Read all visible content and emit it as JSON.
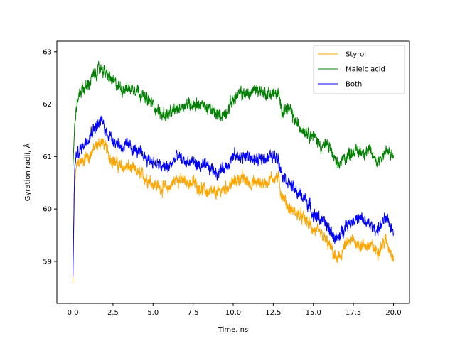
{
  "chart_data": {
    "type": "line",
    "xlabel": "Time, ns",
    "ylabel": "Gyration radii, Å",
    "xlim": [
      -1.0,
      21.0
    ],
    "ylim": [
      58.2,
      63.2
    ],
    "xticks": [
      0.0,
      2.5,
      5.0,
      7.5,
      10.0,
      12.5,
      15.0,
      17.5,
      20.0
    ],
    "xtick_labels": [
      "0.0",
      "2.5",
      "5.0",
      "7.5",
      "10.0",
      "12.5",
      "15.0",
      "17.5",
      "20.0"
    ],
    "yticks": [
      59,
      60,
      61,
      62,
      63
    ],
    "ytick_labels": [
      "59",
      "60",
      "61",
      "62",
      "63"
    ],
    "grid": false,
    "legend_position": "top-right",
    "series": [
      {
        "name": "Styrol",
        "color": "#ffa500",
        "x": [
          0.0,
          0.1,
          0.2,
          0.4,
          0.6,
          0.8,
          1.0,
          1.2,
          1.5,
          1.8,
          2.0,
          2.3,
          2.6,
          3.0,
          3.5,
          4.0,
          4.5,
          5.0,
          5.5,
          6.0,
          6.5,
          7.0,
          7.5,
          8.0,
          8.5,
          9.0,
          9.5,
          10.0,
          10.5,
          11.0,
          11.5,
          12.0,
          12.5,
          12.8,
          13.0,
          13.5,
          14.0,
          14.5,
          15.0,
          15.5,
          16.0,
          16.5,
          17.0,
          17.5,
          18.0,
          18.5,
          19.0,
          19.5,
          20.0
        ],
        "y": [
          58.6,
          60.4,
          60.8,
          60.9,
          60.9,
          61.0,
          61.0,
          61.1,
          61.2,
          61.3,
          61.2,
          61.0,
          60.9,
          60.8,
          60.8,
          60.7,
          60.6,
          60.5,
          60.4,
          60.4,
          60.6,
          60.5,
          60.5,
          60.4,
          60.3,
          60.3,
          60.4,
          60.5,
          60.6,
          60.5,
          60.5,
          60.5,
          60.6,
          60.6,
          60.3,
          60.0,
          59.9,
          59.8,
          59.6,
          59.5,
          59.3,
          59.0,
          59.3,
          59.4,
          59.3,
          59.3,
          59.2,
          59.4,
          59.1
        ]
      },
      {
        "name": "Maleic acid",
        "color": "#008000",
        "x": [
          0.0,
          0.1,
          0.2,
          0.4,
          0.6,
          0.8,
          1.0,
          1.2,
          1.5,
          1.8,
          2.0,
          2.3,
          2.6,
          3.0,
          3.5,
          4.0,
          4.5,
          5.0,
          5.5,
          6.0,
          6.5,
          7.0,
          7.5,
          8.0,
          8.5,
          9.0,
          9.5,
          10.0,
          10.5,
          11.0,
          11.5,
          12.0,
          12.5,
          12.8,
          13.0,
          13.5,
          14.0,
          14.5,
          15.0,
          15.5,
          16.0,
          16.5,
          17.0,
          17.5,
          18.0,
          18.5,
          19.0,
          19.5,
          20.0
        ],
        "y": [
          60.8,
          61.5,
          61.9,
          62.2,
          62.3,
          62.3,
          62.4,
          62.5,
          62.6,
          62.7,
          62.6,
          62.5,
          62.4,
          62.3,
          62.3,
          62.3,
          62.1,
          62.0,
          61.8,
          61.8,
          61.9,
          62.0,
          62.0,
          62.0,
          61.9,
          61.8,
          61.8,
          62.1,
          62.2,
          62.2,
          62.3,
          62.2,
          62.2,
          62.2,
          61.9,
          61.9,
          61.6,
          61.5,
          61.4,
          61.2,
          61.2,
          60.8,
          61.0,
          61.1,
          61.1,
          61.1,
          60.9,
          61.1,
          61.0
        ]
      },
      {
        "name": "Both",
        "color": "#0000ff",
        "x": [
          0.0,
          0.1,
          0.2,
          0.4,
          0.6,
          0.8,
          1.0,
          1.2,
          1.5,
          1.8,
          2.0,
          2.3,
          2.6,
          3.0,
          3.5,
          4.0,
          4.5,
          5.0,
          5.5,
          6.0,
          6.5,
          7.0,
          7.5,
          8.0,
          8.5,
          9.0,
          9.5,
          10.0,
          10.5,
          11.0,
          11.5,
          12.0,
          12.5,
          12.8,
          13.0,
          13.5,
          14.0,
          14.5,
          15.0,
          15.5,
          16.0,
          16.5,
          17.0,
          17.5,
          18.0,
          18.5,
          19.0,
          19.5,
          20.0
        ],
        "y": [
          58.7,
          60.7,
          61.0,
          61.1,
          61.2,
          61.3,
          61.4,
          61.5,
          61.6,
          61.7,
          61.5,
          61.4,
          61.3,
          61.2,
          61.2,
          61.1,
          61.0,
          60.9,
          60.8,
          60.8,
          61.0,
          60.9,
          60.9,
          60.8,
          60.8,
          60.7,
          60.8,
          61.0,
          61.0,
          61.0,
          60.9,
          61.0,
          61.0,
          61.0,
          60.7,
          60.5,
          60.3,
          60.2,
          59.9,
          59.8,
          59.6,
          59.4,
          59.7,
          59.8,
          59.8,
          59.7,
          59.6,
          59.8,
          59.6
        ]
      }
    ]
  }
}
